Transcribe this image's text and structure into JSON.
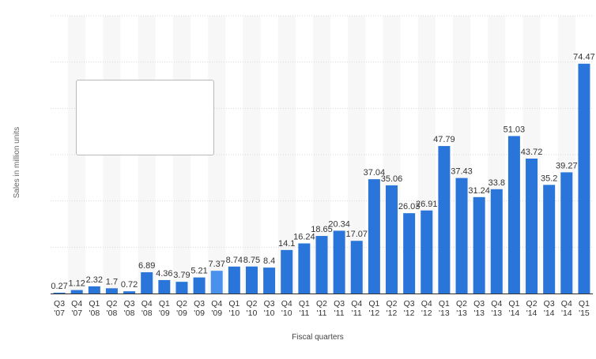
{
  "chart_data": {
    "type": "bar",
    "title": "",
    "xlabel": "Fiscal quarters",
    "ylabel": "Sales in million units",
    "ylim": [
      0,
      90
    ],
    "grid": true,
    "colors": {
      "bar": "#2a75d9",
      "highlight": "#4a91ee",
      "grid": "#d9d9d9",
      "band": "#f7f7f7",
      "axis_text": "#333333",
      "axis_label": "#666666"
    },
    "highlight_index": 9,
    "categories": [
      [
        "Q3",
        "'07"
      ],
      [
        "Q4",
        "'07"
      ],
      [
        "Q1",
        "'08"
      ],
      [
        "Q2",
        "'08"
      ],
      [
        "Q3",
        "'08"
      ],
      [
        "Q4",
        "'08"
      ],
      [
        "Q1",
        "'09"
      ],
      [
        "Q2",
        "'09"
      ],
      [
        "Q3",
        "'09"
      ],
      [
        "Q4",
        "'09"
      ],
      [
        "Q1",
        "'10"
      ],
      [
        "Q2",
        "'10"
      ],
      [
        "Q3",
        "'10"
      ],
      [
        "Q4",
        "'10"
      ],
      [
        "Q1",
        "'11"
      ],
      [
        "Q2",
        "'11"
      ],
      [
        "Q3",
        "'11"
      ],
      [
        "Q4",
        "'11"
      ],
      [
        "Q1",
        "'12"
      ],
      [
        "Q2",
        "'12"
      ],
      [
        "Q3",
        "'12"
      ],
      [
        "Q4",
        "'12"
      ],
      [
        "Q1",
        "'13"
      ],
      [
        "Q2",
        "'13"
      ],
      [
        "Q3",
        "'13"
      ],
      [
        "Q4",
        "'13"
      ],
      [
        "Q1",
        "'14"
      ],
      [
        "Q2",
        "'14"
      ],
      [
        "Q3",
        "'14"
      ],
      [
        "Q4",
        "'14"
      ],
      [
        "Q1",
        "'15"
      ]
    ],
    "values": [
      0.27,
      1.12,
      2.32,
      1.7,
      0.72,
      6.89,
      4.36,
      3.79,
      5.21,
      7.37,
      8.74,
      8.75,
      8.4,
      14.1,
      16.24,
      18.65,
      20.34,
      17.07,
      37.04,
      35.06,
      26.03,
      26.91,
      47.79,
      37.43,
      31.24,
      33.8,
      51.03,
      43.72,
      35.2,
      39.27,
      74.47
    ],
    "value_labels": [
      "0.27",
      "1.12",
      "2.32",
      "1.7",
      "0.72",
      "6.89",
      "4.36",
      "3.79",
      "5.21",
      "7.37",
      "8.74",
      "8.75",
      "8.4",
      "14.1",
      "16.24",
      "18.65",
      "20.34",
      "17.07",
      "37.04",
      "35.06",
      "26.03",
      "26.91",
      "47.79",
      "37.43",
      "31.24",
      "33.8",
      "51.03",
      "43.72",
      "35.2",
      "39.27",
      "74.47"
    ]
  }
}
